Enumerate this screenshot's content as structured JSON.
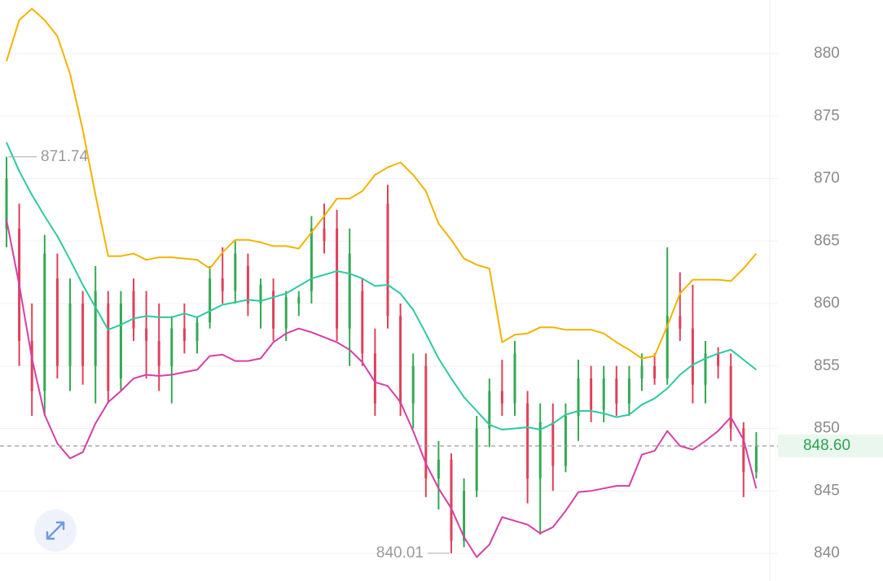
{
  "chart_data": {
    "type": "candlestick",
    "ylim": [
      838,
      884.3
    ],
    "yticks": [
      840,
      845,
      850,
      855,
      860,
      865,
      870,
      875,
      880
    ],
    "grid": true,
    "up_color": "#34a853",
    "down_color": "#e0405a",
    "open": [
      866,
      866,
      857,
      853,
      862,
      855,
      860,
      855,
      860,
      854,
      861,
      858,
      857,
      855,
      858,
      857,
      858.5,
      862,
      861,
      863,
      860,
      861,
      858,
      860,
      861,
      866,
      866,
      858,
      861,
      856,
      868,
      859,
      852,
      855,
      846,
      847.5,
      841,
      845,
      850,
      853,
      852,
      852,
      846,
      850.5,
      847,
      851,
      854,
      851.5,
      854,
      852,
      854,
      855,
      854,
      859,
      858,
      853.5,
      856,
      855,
      850,
      846.5
    ],
    "high": [
      871.74,
      868,
      860,
      865.5,
      864,
      862,
      861,
      863,
      861,
      861,
      862,
      861,
      860,
      859,
      860,
      859,
      863,
      864.5,
      865,
      864,
      862,
      862,
      861,
      861,
      867,
      868,
      867.5,
      866,
      862,
      858,
      869.5,
      860,
      856,
      856,
      849,
      848,
      846,
      851,
      854,
      855.5,
      857,
      853,
      852,
      852,
      852,
      855.5,
      855,
      855,
      855,
      855,
      856,
      856,
      864.5,
      862.5,
      861.5,
      857,
      856.5,
      856,
      850.5,
      849.7
    ],
    "low": [
      864.5,
      855,
      851,
      851,
      854,
      853,
      853.5,
      852,
      852,
      853,
      857,
      854,
      853,
      852,
      856,
      856,
      858,
      860,
      860,
      859,
      858,
      857,
      857,
      859,
      860,
      864,
      857,
      855,
      855,
      851,
      858,
      851,
      850,
      844.5,
      843.5,
      840.01,
      840.5,
      844.5,
      848.5,
      851,
      851,
      844,
      841.5,
      845,
      846.5,
      849,
      850.5,
      850.5,
      851,
      851,
      853,
      853.5,
      853.5,
      857,
      852,
      852,
      854,
      849,
      844.5,
      846
    ],
    "close": [
      870,
      857,
      853,
      864,
      855,
      860,
      855,
      861,
      853,
      860,
      858,
      857,
      855,
      858,
      857,
      858.5,
      862,
      861,
      864,
      860,
      861.5,
      858,
      860.5,
      860.5,
      866,
      865,
      858,
      864,
      856,
      852,
      859,
      852,
      855,
      846,
      847.5,
      841,
      845,
      850,
      853,
      852,
      856,
      846,
      850.5,
      847,
      851,
      854,
      851.5,
      854,
      852,
      854,
      855,
      854,
      859,
      858,
      853.5,
      856,
      855,
      850,
      846.5,
      848.6
    ],
    "bands": [
      {
        "color": "#f0b400",
        "values": [
          879.4,
          882.7,
          883.6,
          882.7,
          881.4,
          878.4,
          873.9,
          868.7,
          863.8,
          863.8,
          864.0,
          863.5,
          863.7,
          863.7,
          863.6,
          863.5,
          862.8,
          864.1,
          865.1,
          865.1,
          864.9,
          864.6,
          864.6,
          864.4,
          865.7,
          867.0,
          868.4,
          868.4,
          869.0,
          870.3,
          870.9,
          871.3,
          870.3,
          869.0,
          866.4,
          865.1,
          863.6,
          863.1,
          862.8,
          856.9,
          857.5,
          857.6,
          858.1,
          858.1,
          857.9,
          857.9,
          857.9,
          857.6,
          856.9,
          856.3,
          855.6,
          855.8,
          858.2,
          860.8,
          861.9,
          861.9,
          861.9,
          861.8,
          862.8,
          864.0
        ]
      },
      {
        "color": "#2ec9a0",
        "values": [
          872.9,
          870.6,
          868.7,
          867.0,
          865.4,
          863.5,
          861.5,
          859.7,
          857.9,
          858.3,
          858.8,
          859.0,
          858.9,
          858.9,
          859.2,
          858.9,
          859.4,
          859.9,
          860.1,
          860.3,
          860.2,
          860.5,
          860.8,
          861.4,
          862.0,
          862.3,
          862.6,
          862.4,
          862.0,
          861.4,
          861.5,
          860.8,
          859.5,
          857.6,
          855.6,
          854.0,
          852.5,
          851.4,
          850.3,
          849.9,
          850.0,
          850.1,
          849.9,
          850.4,
          851.1,
          851.4,
          851.4,
          851.2,
          850.9,
          851.1,
          851.9,
          852.4,
          853.2,
          854.3,
          855.1,
          855.6,
          856.0,
          856.3,
          855.5,
          854.7
        ]
      },
      {
        "color": "#d63fa7",
        "values": [
          866.7,
          861.5,
          855.6,
          851.1,
          848.8,
          847.6,
          848.1,
          850.4,
          852.1,
          853.0,
          854.0,
          854.3,
          854.2,
          854.3,
          854.5,
          854.7,
          855.8,
          855.9,
          855.4,
          855.4,
          855.6,
          856.9,
          857.6,
          858.0,
          857.7,
          857.3,
          856.9,
          856.3,
          855.3,
          853.7,
          853.4,
          852.1,
          849.8,
          847.2,
          845.2,
          843.6,
          841.3,
          839.7,
          840.7,
          842.9,
          842.6,
          842.3,
          841.6,
          842.1,
          843.4,
          844.9,
          845.0,
          845.2,
          845.4,
          845.4,
          847.9,
          848.2,
          849.8,
          848.6,
          848.3,
          849.0,
          849.8,
          850.9,
          849.1,
          845.2
        ]
      }
    ],
    "last_price": {
      "value": 848.6,
      "label": "848.60"
    },
    "high_marker": 871.74,
    "low_marker": 840.01
  }
}
